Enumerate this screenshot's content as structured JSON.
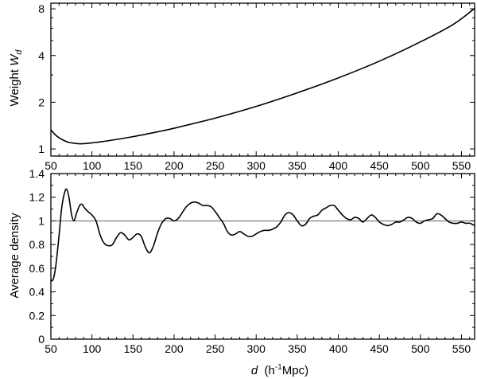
{
  "chart_data": [
    {
      "type": "line",
      "panel": "top",
      "ylabel_main": "Weight ",
      "ylabel_italic": "W",
      "ylabel_sub": "d",
      "xlim": [
        50,
        566
      ],
      "ylim": [
        0.9,
        8.7
      ],
      "yscale": "log",
      "x_ticks": [
        "50",
        "100",
        "150",
        "200",
        "250",
        "300",
        "350",
        "400",
        "450",
        "500",
        "550"
      ],
      "y_ticks": [
        "1",
        "2",
        "4",
        "8"
      ],
      "y_tick_values": [
        1,
        2,
        4,
        8
      ],
      "series": [
        {
          "x": [
            50,
            55,
            60,
            65,
            70,
            75,
            80,
            85,
            90,
            100,
            120,
            150,
            180,
            200,
            250,
            300,
            350,
            400,
            450,
            500,
            540,
            566
          ],
          "values": [
            1.33,
            1.24,
            1.18,
            1.14,
            1.11,
            1.095,
            1.085,
            1.08,
            1.082,
            1.095,
            1.13,
            1.2,
            1.29,
            1.36,
            1.58,
            1.88,
            2.3,
            2.87,
            3.68,
            4.9,
            6.35,
            8.05
          ]
        }
      ]
    },
    {
      "type": "line",
      "panel": "bottom",
      "xlabel_italic": "d",
      "xlabel_rest": "  (h",
      "xlabel_sup": "-1",
      "xlabel_end": "Mpc)",
      "ylabel": "Average density",
      "xlim": [
        50,
        566
      ],
      "ylim": [
        0,
        1.4
      ],
      "reference_line": 1,
      "x_ticks": [
        "50",
        "100",
        "150",
        "200",
        "250",
        "300",
        "350",
        "400",
        "450",
        "500",
        "550"
      ],
      "y_ticks": [
        "0",
        "0.2",
        "0.4",
        "0.6",
        "0.8",
        "1",
        "1.2",
        "1.4"
      ],
      "series": [
        {
          "x": [
            50,
            53,
            56,
            60,
            63,
            66,
            69,
            72,
            75,
            78,
            81,
            85,
            88,
            91,
            95,
            100,
            105,
            110,
            115,
            120,
            125,
            130,
            135,
            140,
            145,
            150,
            155,
            160,
            165,
            170,
            175,
            180,
            185,
            190,
            195,
            200,
            205,
            210,
            215,
            220,
            225,
            230,
            235,
            240,
            245,
            250,
            255,
            260,
            265,
            270,
            275,
            280,
            285,
            290,
            295,
            300,
            305,
            310,
            315,
            320,
            325,
            330,
            335,
            340,
            345,
            350,
            355,
            360,
            365,
            370,
            375,
            380,
            385,
            390,
            395,
            400,
            405,
            410,
            415,
            420,
            425,
            430,
            435,
            440,
            445,
            450,
            455,
            460,
            465,
            470,
            475,
            480,
            485,
            490,
            495,
            500,
            505,
            510,
            515,
            520,
            525,
            530,
            535,
            540,
            545,
            550,
            555,
            560,
            566
          ],
          "values": [
            0.49,
            0.51,
            0.62,
            0.88,
            1.1,
            1.22,
            1.27,
            1.2,
            1.06,
            1.0,
            1.06,
            1.13,
            1.14,
            1.11,
            1.08,
            1.05,
            1.0,
            0.88,
            0.81,
            0.79,
            0.8,
            0.86,
            0.9,
            0.88,
            0.84,
            0.86,
            0.89,
            0.87,
            0.78,
            0.73,
            0.79,
            0.9,
            0.98,
            1.02,
            1.02,
            1.0,
            1.02,
            1.07,
            1.12,
            1.15,
            1.16,
            1.15,
            1.13,
            1.13,
            1.12,
            1.08,
            1.03,
            0.98,
            0.91,
            0.88,
            0.89,
            0.91,
            0.89,
            0.87,
            0.87,
            0.89,
            0.91,
            0.92,
            0.92,
            0.93,
            0.95,
            0.99,
            1.05,
            1.07,
            1.05,
            1.0,
            0.96,
            0.97,
            1.02,
            1.04,
            1.05,
            1.09,
            1.11,
            1.13,
            1.13,
            1.09,
            1.05,
            1.02,
            1.01,
            1.03,
            1.02,
            0.99,
            1.02,
            1.05,
            1.03,
            0.99,
            0.97,
            0.96,
            0.97,
            0.99,
            0.99,
            1.01,
            1.03,
            1.02,
            0.99,
            0.98,
            1.0,
            1.01,
            1.02,
            1.06,
            1.05,
            1.02,
            0.99,
            0.98,
            0.98,
            0.99,
            0.98,
            0.98,
            0.96
          ]
        }
      ]
    }
  ]
}
